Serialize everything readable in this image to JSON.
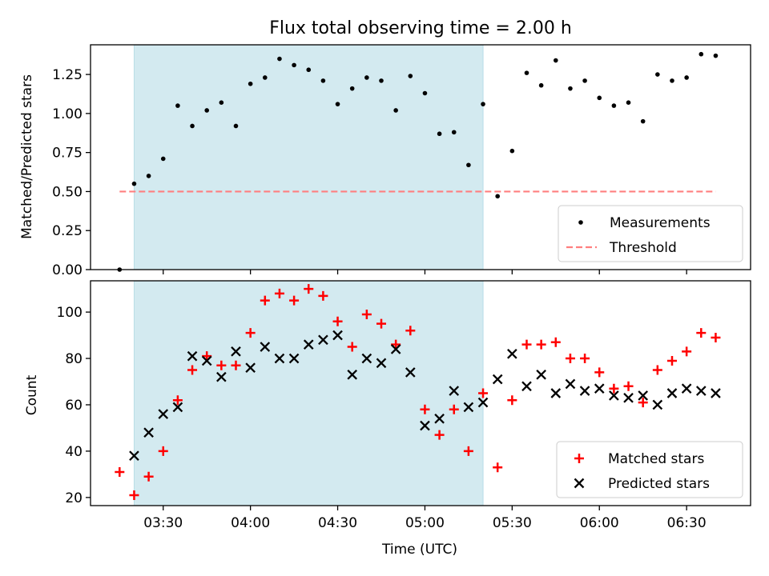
{
  "chart_data": [
    {
      "type": "scatter",
      "title": "Flux total observing time = 2.00 h",
      "xlabel": "",
      "ylabel": "Matched/Predicted stars",
      "xlim": [
        "03:05",
        "06:52"
      ],
      "ylim": [
        0,
        1.44
      ],
      "yticks": [
        "0.00",
        "0.25",
        "0.50",
        "0.75",
        "1.00",
        "1.25"
      ],
      "grid": false,
      "shaded_interval": {
        "x0": "03:20",
        "x1": "05:20",
        "color": "#d3eaf0"
      },
      "legend": {
        "placement": "lower right",
        "entries": [
          "Measurements",
          "Threshold"
        ]
      },
      "series": [
        {
          "name": "Measurements",
          "style": "dots",
          "color": "#000000",
          "x": [
            "03:15",
            "03:20",
            "03:25",
            "03:30",
            "03:35",
            "03:40",
            "03:45",
            "03:50",
            "03:55",
            "04:00",
            "04:05",
            "04:10",
            "04:15",
            "04:20",
            "04:25",
            "04:30",
            "04:35",
            "04:40",
            "04:45",
            "04:50",
            "04:55",
            "05:00",
            "05:05",
            "05:10",
            "05:15",
            "05:20",
            "05:25",
            "05:30",
            "05:35",
            "05:40",
            "05:45",
            "05:50",
            "05:55",
            "06:00",
            "06:05",
            "06:10",
            "06:15",
            "06:20",
            "06:25",
            "06:30",
            "06:35",
            "06:40"
          ],
          "y": [
            0.0,
            0.55,
            0.6,
            0.71,
            1.05,
            0.92,
            1.02,
            1.07,
            0.92,
            1.19,
            1.23,
            1.35,
            1.31,
            1.28,
            1.21,
            1.06,
            1.16,
            1.23,
            1.21,
            1.02,
            1.24,
            1.13,
            0.87,
            0.88,
            0.67,
            1.06,
            0.47,
            0.76,
            1.26,
            1.18,
            1.34,
            1.16,
            1.21,
            1.1,
            1.05,
            1.07,
            0.95,
            1.25,
            1.21,
            1.23,
            1.38,
            1.37
          ]
        },
        {
          "name": "Threshold",
          "style": "dashed-line",
          "color": "#ff7f7f",
          "x": [
            "03:15",
            "06:40"
          ],
          "y": [
            0.5,
            0.5
          ]
        }
      ]
    },
    {
      "type": "scatter",
      "title": "",
      "xlabel": "Time (UTC)",
      "ylabel": "Count",
      "xlim": [
        "03:05",
        "06:52"
      ],
      "ylim": [
        16.5,
        113.5
      ],
      "yticks": [
        "20",
        "40",
        "60",
        "80",
        "100"
      ],
      "xticks": [
        "03:30",
        "04:00",
        "04:30",
        "05:00",
        "05:30",
        "06:00",
        "06:30"
      ],
      "grid": false,
      "shaded_interval": {
        "x0": "03:20",
        "x1": "05:20",
        "color": "#d3eaf0"
      },
      "legend": {
        "placement": "lower right",
        "entries": [
          "Matched stars",
          "Predicted stars"
        ]
      },
      "series": [
        {
          "name": "Matched stars",
          "marker": "plus",
          "color": "#ff0000",
          "x": [
            "03:15",
            "03:20",
            "03:25",
            "03:30",
            "03:35",
            "03:40",
            "03:45",
            "03:50",
            "03:55",
            "04:00",
            "04:05",
            "04:10",
            "04:15",
            "04:20",
            "04:25",
            "04:30",
            "04:35",
            "04:40",
            "04:45",
            "04:50",
            "04:55",
            "05:00",
            "05:05",
            "05:10",
            "05:15",
            "05:20",
            "05:25",
            "05:30",
            "05:35",
            "05:40",
            "05:45",
            "05:50",
            "05:55",
            "06:00",
            "06:05",
            "06:10",
            "06:15",
            "06:20",
            "06:25",
            "06:30",
            "06:35",
            "06:40"
          ],
          "y": [
            31,
            21,
            29,
            40,
            62,
            75,
            81,
            77,
            77,
            91,
            105,
            108,
            105,
            110,
            107,
            96,
            85,
            99,
            95,
            86,
            92,
            58,
            47,
            58,
            40,
            65,
            33,
            62,
            86,
            86,
            87,
            80,
            80,
            74,
            67,
            68,
            61,
            75,
            79,
            83,
            91,
            89
          ]
        },
        {
          "name": "Predicted stars",
          "marker": "x",
          "color": "#000000",
          "x": [
            "03:20",
            "03:25",
            "03:30",
            "03:35",
            "03:40",
            "03:45",
            "03:50",
            "03:55",
            "04:00",
            "04:05",
            "04:10",
            "04:15",
            "04:20",
            "04:25",
            "04:30",
            "04:35",
            "04:40",
            "04:45",
            "04:50",
            "04:55",
            "05:00",
            "05:05",
            "05:10",
            "05:15",
            "05:20",
            "05:25",
            "05:30",
            "05:35",
            "05:40",
            "05:45",
            "05:50",
            "05:55",
            "06:00",
            "06:05",
            "06:10",
            "06:15",
            "06:20",
            "06:25",
            "06:30",
            "06:35",
            "06:40"
          ],
          "y": [
            38,
            48,
            56,
            59,
            81,
            79,
            72,
            83,
            76,
            85,
            80,
            80,
            86,
            88,
            90,
            73,
            80,
            78,
            84,
            74,
            51,
            54,
            66,
            59,
            61,
            71,
            82,
            68,
            73,
            65,
            69,
            66,
            67,
            64,
            63,
            64,
            60,
            65,
            67,
            66,
            65
          ]
        }
      ]
    }
  ]
}
